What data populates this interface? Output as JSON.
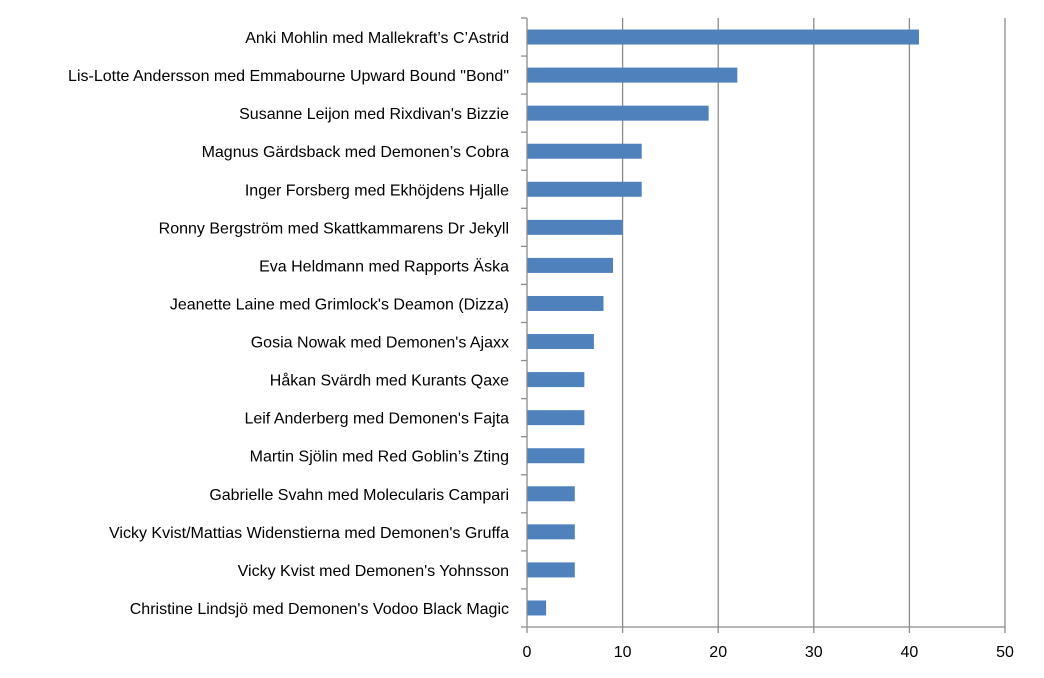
{
  "chart_data": {
    "type": "bar",
    "orientation": "horizontal",
    "categories": [
      "Anki Mohlin med Mallekraft’s C’Astrid",
      "Lis-Lotte Andersson med Emmabourne Upward Bound \"Bond\"",
      "Susanne Leijon med Rixdivan's Bizzie",
      "Magnus Gärdsback med Demonen’s Cobra",
      "Inger Forsberg med Ekhöjdens Hjalle",
      "Ronny Bergström med Skattkammarens Dr Jekyll",
      "Eva Heldmann med Rapports Äska",
      "Jeanette Laine med Grimlock's Deamon (Dizza)",
      "Gosia Nowak med Demonen's Ajaxx",
      "Håkan Svärdh med Kurants Qaxe",
      "Leif Anderberg med Demonen's Fajta",
      "Martin Sjölin med Red Goblin’s Zting",
      "Gabrielle Svahn med Molecularis Campari",
      "Vicky Kvist/Mattias Widenstierna med Demonen's Gruffa",
      "Vicky Kvist med Demonen's Yohnsson",
      "Christine Lindsjö med Demonen's Vodoo Black Magic"
    ],
    "values": [
      41,
      22,
      19,
      12,
      12,
      10,
      9,
      8,
      7,
      6,
      6,
      6,
      5,
      5,
      5,
      2
    ],
    "xlim": [
      0,
      50
    ],
    "xticks": [
      0,
      10,
      20,
      30,
      40,
      50
    ],
    "xtick_labels": [
      "0",
      "10",
      "20",
      "30",
      "40",
      "50"
    ],
    "grid": "vertical",
    "legend": "none",
    "bar_color": "#4f81bd",
    "title": "",
    "xlabel": "",
    "ylabel": ""
  }
}
